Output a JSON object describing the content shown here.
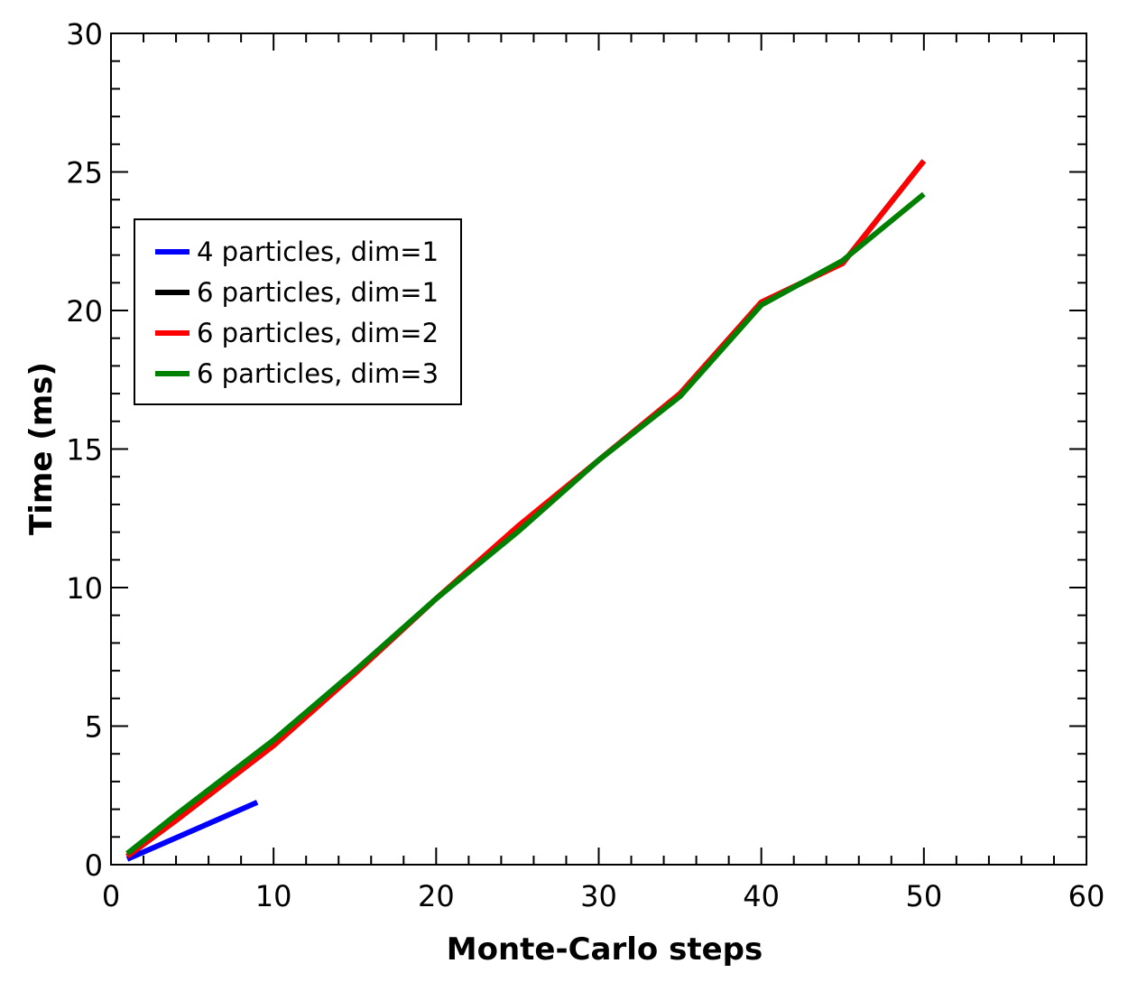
{
  "chart_data": {
    "type": "line",
    "title": "",
    "xlabel": "Monte-Carlo steps",
    "ylabel": "Time (ms)",
    "xlim": [
      0,
      60
    ],
    "ylim": [
      0,
      30
    ],
    "xticks": [
      0,
      10,
      20,
      30,
      40,
      50,
      60
    ],
    "yticks": [
      0,
      5,
      10,
      15,
      20,
      25,
      30
    ],
    "grid": false,
    "legend_position": "upper-left",
    "series": [
      {
        "name": "4 particles, dim=1",
        "color": "#0000ff",
        "x": [
          1,
          9
        ],
        "y": [
          0.2,
          2.25
        ]
      },
      {
        "name": "6 particles, dim=1",
        "color": "#000000",
        "x": [
          1,
          4,
          10,
          15,
          20,
          25,
          30,
          35,
          40,
          45,
          50
        ],
        "y": [
          0.3,
          1.6,
          4.3,
          6.9,
          9.6,
          12.1,
          14.6,
          17.0,
          20.3,
          21.7,
          25.4
        ]
      },
      {
        "name": "6 particles, dim=2",
        "color": "#ff0000",
        "x": [
          1,
          4,
          10,
          15,
          20,
          25,
          30,
          35,
          40,
          45,
          50
        ],
        "y": [
          0.3,
          1.6,
          4.3,
          6.9,
          9.6,
          12.2,
          14.6,
          17.0,
          20.3,
          21.7,
          25.4
        ]
      },
      {
        "name": "6 particles, dim=3",
        "color": "#008000",
        "x": [
          1,
          4,
          10,
          15,
          20,
          25,
          30,
          35,
          40,
          45,
          50
        ],
        "y": [
          0.4,
          1.8,
          4.5,
          7.0,
          9.6,
          12.0,
          14.6,
          16.9,
          20.2,
          21.8,
          24.2
        ]
      }
    ]
  }
}
